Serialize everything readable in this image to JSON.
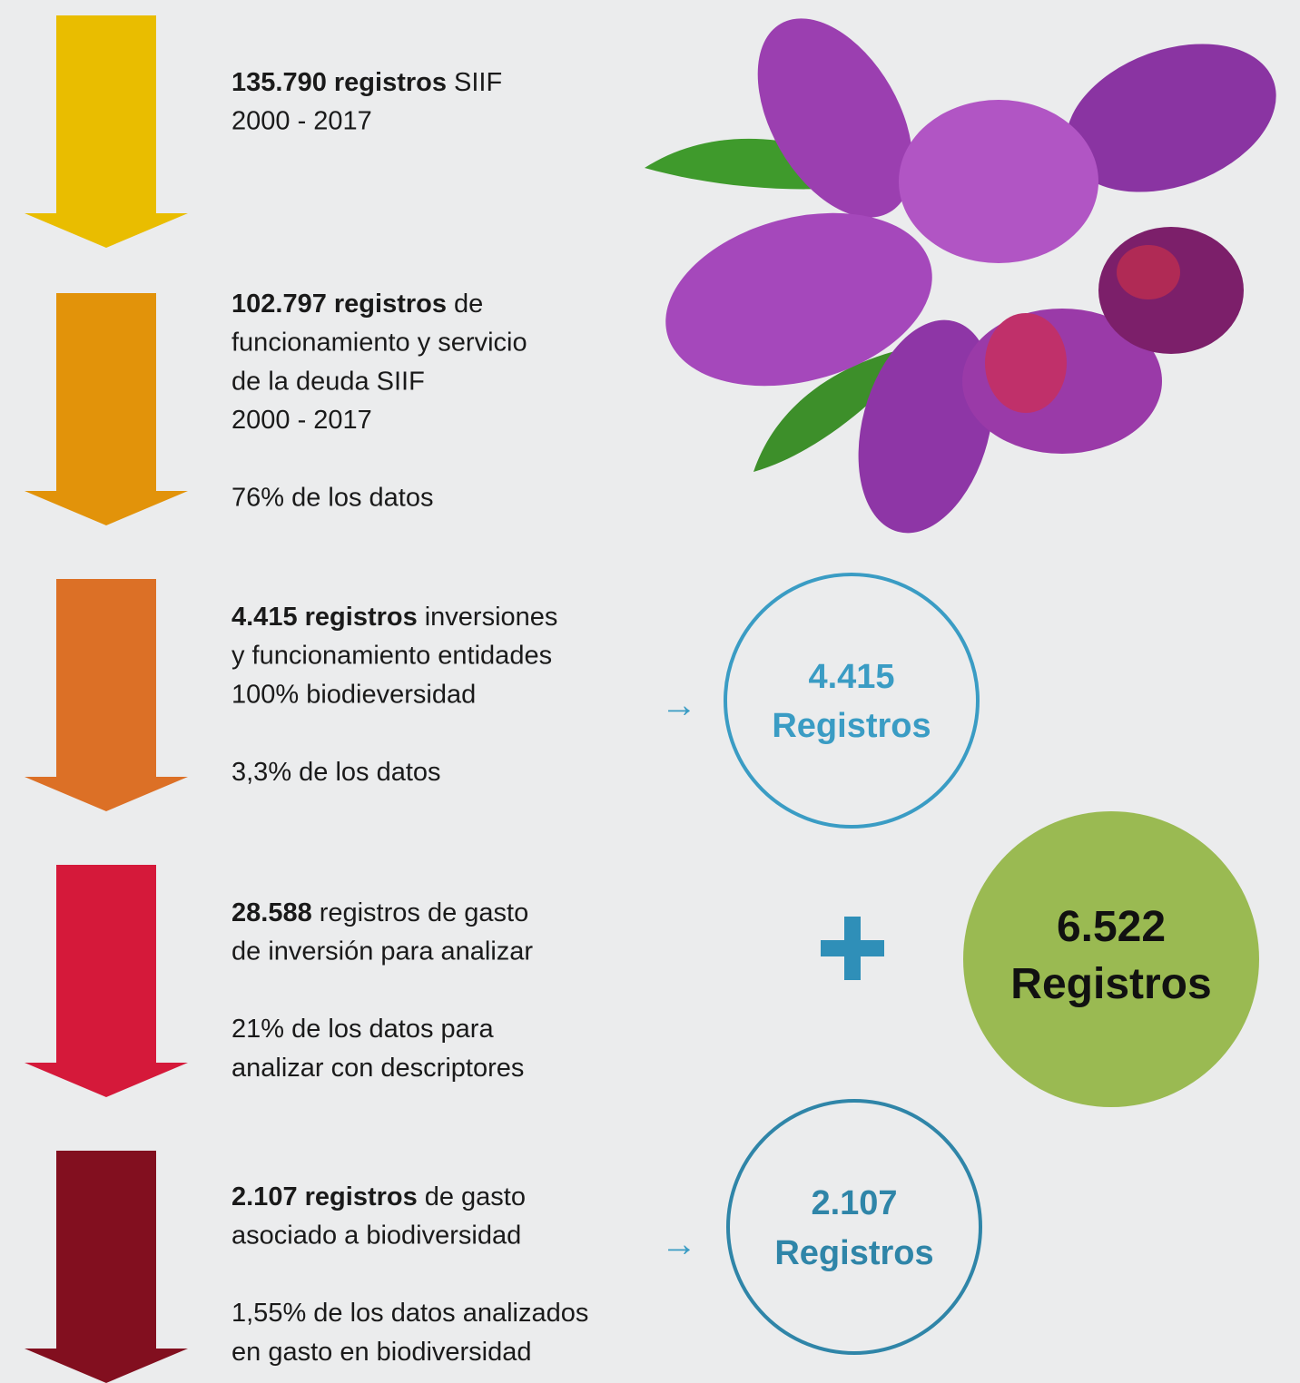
{
  "steps": [
    {
      "color": "#e9bd00",
      "lead": "135.790 registros",
      "lines": [
        "SIIF",
        "2000 - 2017"
      ],
      "note": []
    },
    {
      "color": "#e2930a",
      "lead": "102.797 registros",
      "lines": [
        "de",
        "funcionamiento y servicio",
        "de la deuda SIIF",
        "2000 - 2017"
      ],
      "note": [
        "76% de los datos"
      ]
    },
    {
      "color": "#dc7026",
      "lead": "4.415 registros",
      "lines": [
        "inversiones",
        "y funcionamiento entidades",
        "100% biodieversidad"
      ],
      "note": [
        "3,3% de los datos"
      ]
    },
    {
      "color": "#d5193a",
      "lead": "28.588",
      "lines": [
        "registros de gasto",
        "de inversión para analizar"
      ],
      "note": [
        "21% de los datos para",
        "analizar con descriptores"
      ]
    },
    {
      "color": "#820f1f",
      "lead": "2.107 registros",
      "lines": [
        "de gasto",
        "asociado a biodiversidad"
      ],
      "note": [
        "1,55% de los datos analizados",
        "en gasto en biodiversidad"
      ]
    }
  ],
  "circles": [
    {
      "number": "4.415",
      "label": "Registros"
    },
    {
      "number": "6.522",
      "label": "Registros"
    },
    {
      "number": "2.107",
      "label": "Registros"
    }
  ]
}
